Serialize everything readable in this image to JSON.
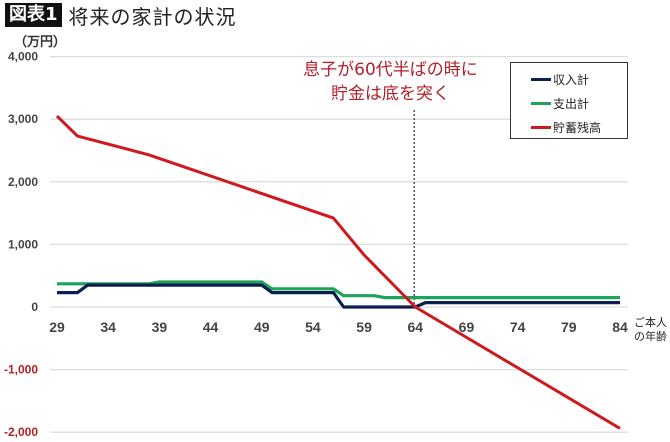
{
  "header": {
    "badge": "図表1",
    "title": "将来の家計の状況"
  },
  "axis": {
    "unit_label": "（万円）",
    "x_label_line1": "ご本人",
    "x_label_line2": "の年齢"
  },
  "annotation": {
    "line1": "息子が60代半ばの時に",
    "line2": "貯金は底を突く"
  },
  "legend": [
    {
      "label": "収入計",
      "color": "#0d1f4f"
    },
    {
      "label": "支出計",
      "color": "#1fa35a"
    },
    {
      "label": "貯蓄残高",
      "color": "#cc1a1f"
    }
  ],
  "colors": {
    "income": "#0d1f4f",
    "expense": "#1fa35a",
    "savings": "#cc1a1f",
    "negative_tick": "#b3202a",
    "gridline": "#dddddd"
  },
  "chart_data": {
    "type": "line",
    "title": "将来の家計の状況",
    "xlabel": "ご本人の年齢",
    "ylabel": "（万円）",
    "ylim": [
      -2000,
      4000
    ],
    "yticks": [
      4000,
      3000,
      2000,
      1000,
      0,
      -1000,
      -2000
    ],
    "ytick_labels": [
      "4,000",
      "3,000",
      "2,000",
      "1,000",
      "0",
      "-1,000",
      "-2,000"
    ],
    "xticks": [
      29,
      34,
      39,
      44,
      49,
      54,
      59,
      64,
      69,
      74,
      79,
      84
    ],
    "grid": true,
    "legend_position": "upper right",
    "annotations": [
      {
        "text": "息子が60代半ばの時に貯金は底を突く",
        "x": 64,
        "style": "dotted vertical line"
      }
    ],
    "series": [
      {
        "name": "収入計",
        "points": [
          [
            29,
            230
          ],
          [
            31,
            230
          ],
          [
            32,
            350
          ],
          [
            49,
            350
          ],
          [
            50,
            230
          ],
          [
            56,
            230
          ],
          [
            57,
            0
          ],
          [
            64,
            0
          ],
          [
            65,
            70
          ],
          [
            84,
            70
          ]
        ]
      },
      {
        "name": "支出計",
        "points": [
          [
            29,
            370
          ],
          [
            38,
            370
          ],
          [
            39,
            400
          ],
          [
            49,
            400
          ],
          [
            50,
            290
          ],
          [
            56,
            290
          ],
          [
            57,
            180
          ],
          [
            60,
            180
          ],
          [
            61,
            150
          ],
          [
            84,
            150
          ]
        ]
      },
      {
        "name": "貯蓄残高",
        "points": [
          [
            29,
            3050
          ],
          [
            31,
            2730
          ],
          [
            38,
            2430
          ],
          [
            56,
            1420
          ],
          [
            59,
            830
          ],
          [
            64,
            0
          ],
          [
            84,
            -1940
          ]
        ]
      }
    ]
  }
}
